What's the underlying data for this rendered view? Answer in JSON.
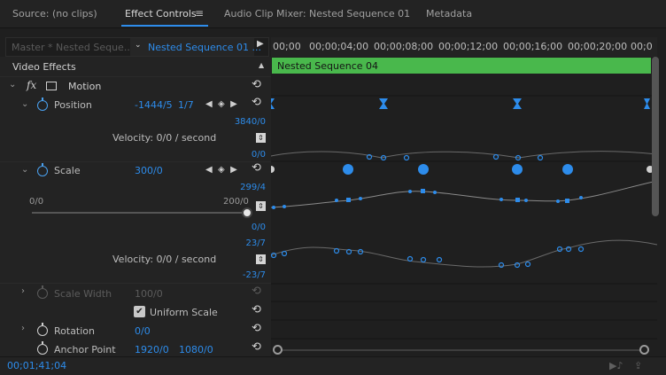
{
  "tabs": [
    {
      "label": "Source: (no clips)"
    },
    {
      "label": "Effect Controls"
    },
    {
      "label": "Audio Clip Mixer: Nested Sequence 01"
    },
    {
      "label": "Metadata"
    }
  ],
  "tab_menu_icon": "≡",
  "sequence": {
    "master": "Master * Nested Seque...",
    "current": "Nested Sequence 01 ..."
  },
  "ruler_ticks": [
    "00;00",
    "00;00;04;00",
    "00;00;08;00",
    "00;00;12;00",
    "00;00;16;00",
    "00;00;20;00",
    "00;0"
  ],
  "clip_name": "Nested Sequence 04",
  "section_header": "Video Effects",
  "motion": {
    "fx_label": "fx",
    "label": "Motion"
  },
  "position": {
    "label": "Position",
    "x": "-1444/5",
    "y": "1/7",
    "max": "3840/0",
    "min": "0/0",
    "velocity": "Velocity: 0/0 / second"
  },
  "scale": {
    "label": "Scale",
    "value": "300/0",
    "graph_max": "299/4",
    "graph_min": "0/0",
    "slider_min": "0/0",
    "slider_max": "200/0",
    "vel_max": "23/7",
    "vel_min": "-23/7",
    "velocity": "Velocity: 0/0 / second"
  },
  "scale_width": {
    "label": "Scale Width",
    "value": "100/0"
  },
  "uniform_scale": {
    "label": "Uniform Scale",
    "checked": true
  },
  "rotation": {
    "label": "Rotation",
    "value": "0/0"
  },
  "anchor_point": {
    "label": "Anchor Point",
    "x": "1920/0",
    "y": "1080/0"
  },
  "timecode": "00;01;41;04",
  "colors": {
    "accent": "#2d8ceb",
    "clip": "#49b84c",
    "bg": "#1f1f1f"
  }
}
